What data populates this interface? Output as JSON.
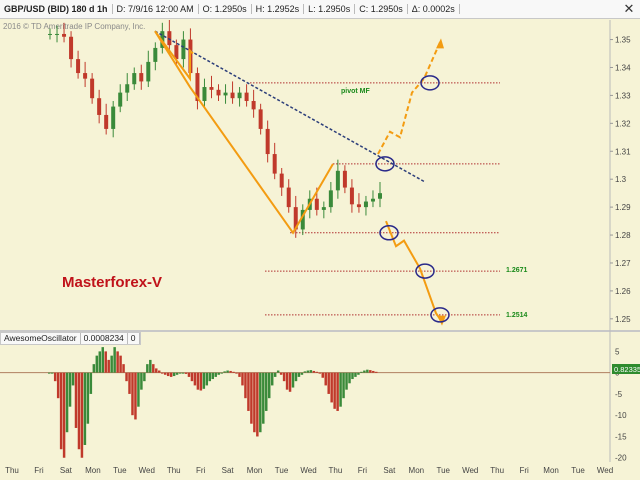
{
  "header": {
    "symbol": "GBP/USD (BID) 180 d 1h",
    "date": "D: 7/9/16 12:00 AM",
    "open": "O: 1.2950s",
    "high": "H: 1.2952s",
    "low": "L: 1.2950s",
    "close": "C: 1.2950s",
    "change": "Δ: 0.0002s"
  },
  "copyright": "2016 © TD Ameritrade IP Company, Inc.",
  "watermark": "Masterforex-V",
  "annotations": {
    "pivot": "pivot MF",
    "target1": "1.2671",
    "target2": "1.2514"
  },
  "indicator": {
    "name": "AwesomeOscillator",
    "value": "0.0008234",
    "param": "0",
    "badge": "0.82335"
  },
  "colors": {
    "background": "#f6f3d6",
    "up_bar": "#3a8a3a",
    "down_bar": "#c0392b",
    "trend_line": "#2c3e7a",
    "pattern": "#f39c12",
    "level": "#b03030",
    "circle": "#2a2a8a",
    "watermark": "#c0121a",
    "target_label": "#1a8a1a"
  },
  "chart_data": [
    {
      "type": "candlestick",
      "title": "",
      "y_axis_labels": [
        "1.35",
        "1.34",
        "1.33",
        "1.32",
        "1.31",
        "1.3",
        "1.29",
        "1.28",
        "1.27",
        "1.26",
        "1.25"
      ],
      "ylim": [
        1.246,
        1.357
      ],
      "x_axis_labels": [
        "Thu",
        "Fri",
        "Sat",
        "Mon",
        "Tue",
        "Wed",
        "Thu",
        "Fri",
        "Sat",
        "Mon",
        "Tue",
        "Wed",
        "Thu",
        "Fri",
        "Sat",
        "Mon",
        "Tue",
        "Wed",
        "Thu",
        "Fri",
        "Mon",
        "Tue",
        "Wed"
      ],
      "price_path": [
        [
          0,
          1.352
        ],
        [
          1,
          1.352
        ],
        [
          2,
          1.351
        ],
        [
          3,
          1.343
        ],
        [
          4,
          1.338
        ],
        [
          5,
          1.336
        ],
        [
          6,
          1.329
        ],
        [
          7,
          1.323
        ],
        [
          8,
          1.318
        ],
        [
          9,
          1.326
        ],
        [
          10,
          1.331
        ],
        [
          11,
          1.334
        ],
        [
          12,
          1.338
        ],
        [
          13,
          1.335
        ],
        [
          14,
          1.342
        ],
        [
          15,
          1.347
        ],
        [
          16,
          1.353
        ],
        [
          17,
          1.348
        ],
        [
          18,
          1.343
        ],
        [
          19,
          1.35
        ],
        [
          20,
          1.338
        ],
        [
          21,
          1.328
        ],
        [
          22,
          1.333
        ],
        [
          23,
          1.332
        ],
        [
          24,
          1.33
        ],
        [
          25,
          1.331
        ],
        [
          26,
          1.329
        ],
        [
          27,
          1.331
        ],
        [
          28,
          1.328
        ],
        [
          29,
          1.325
        ],
        [
          30,
          1.318
        ],
        [
          31,
          1.309
        ],
        [
          32,
          1.302
        ],
        [
          33,
          1.297
        ],
        [
          34,
          1.29
        ],
        [
          35,
          1.282
        ],
        [
          36,
          1.289
        ],
        [
          37,
          1.293
        ],
        [
          38,
          1.289
        ],
        [
          39,
          1.29
        ],
        [
          40,
          1.296
        ],
        [
          41,
          1.303
        ],
        [
          42,
          1.297
        ],
        [
          43,
          1.291
        ],
        [
          44,
          1.29
        ],
        [
          45,
          1.292
        ],
        [
          46,
          1.293
        ],
        [
          47,
          1.295
        ]
      ],
      "levels": [
        {
          "price": 1.3345,
          "label": "pivot MF"
        },
        {
          "price": 1.3055,
          "label": ""
        },
        {
          "price": 1.2808,
          "label": ""
        },
        {
          "price": 1.2671,
          "label": "1.2671"
        },
        {
          "price": 1.2514,
          "label": "1.2514"
        }
      ],
      "trend_line": [
        [
          1.353
        ],
        [
          1.299
        ]
      ],
      "projection_up": [
        1.309,
        1.317,
        1.315,
        1.331,
        1.336,
        1.349
      ],
      "projection_down": [
        1.285,
        1.276,
        1.278,
        1.268,
        1.252,
        1.249
      ]
    },
    {
      "type": "bar",
      "title": "AwesomeOscillator",
      "y_axis_labels": [
        "5",
        "0",
        "-5",
        "-10",
        "-15",
        "-20"
      ],
      "ylim": [
        -21,
        6.5
      ],
      "values": [
        0,
        0,
        -2,
        -6,
        -18,
        -20,
        -14,
        -8,
        -3,
        -13,
        -18,
        -20,
        -17,
        -12,
        -5,
        2,
        4,
        5,
        6,
        5,
        3,
        4,
        6,
        5,
        4,
        2,
        -2,
        -5,
        -10,
        -11,
        -8,
        -4,
        -2,
        2,
        3,
        2,
        1,
        0.5,
        -0.2,
        -0.5,
        -0.8,
        -1,
        -0.8,
        -0.5,
        -0.2,
        0,
        -0.3,
        -1,
        -2,
        -3,
        -4,
        -4.2,
        -3.8,
        -3,
        -2,
        -1.5,
        -1,
        -0.5,
        0,
        0.3,
        0.5,
        0.4,
        0.2,
        -0.2,
        -1,
        -3,
        -6,
        -9,
        -12,
        -14,
        -15,
        -14,
        -12,
        -9,
        -6,
        -3,
        -1,
        0.5,
        -0.5,
        -2,
        -4,
        -4.5,
        -3.5,
        -2,
        -1,
        -0.5,
        0.3,
        0.5,
        0.6,
        0.4,
        0.2,
        -0.2,
        -1.2,
        -3,
        -5,
        -7,
        -8.5,
        -9,
        -8,
        -6,
        -4,
        -2.5,
        -1.5,
        -1,
        -0.5,
        0.2,
        0.5,
        0.7,
        0.6,
        0.4,
        0.2
      ]
    }
  ]
}
